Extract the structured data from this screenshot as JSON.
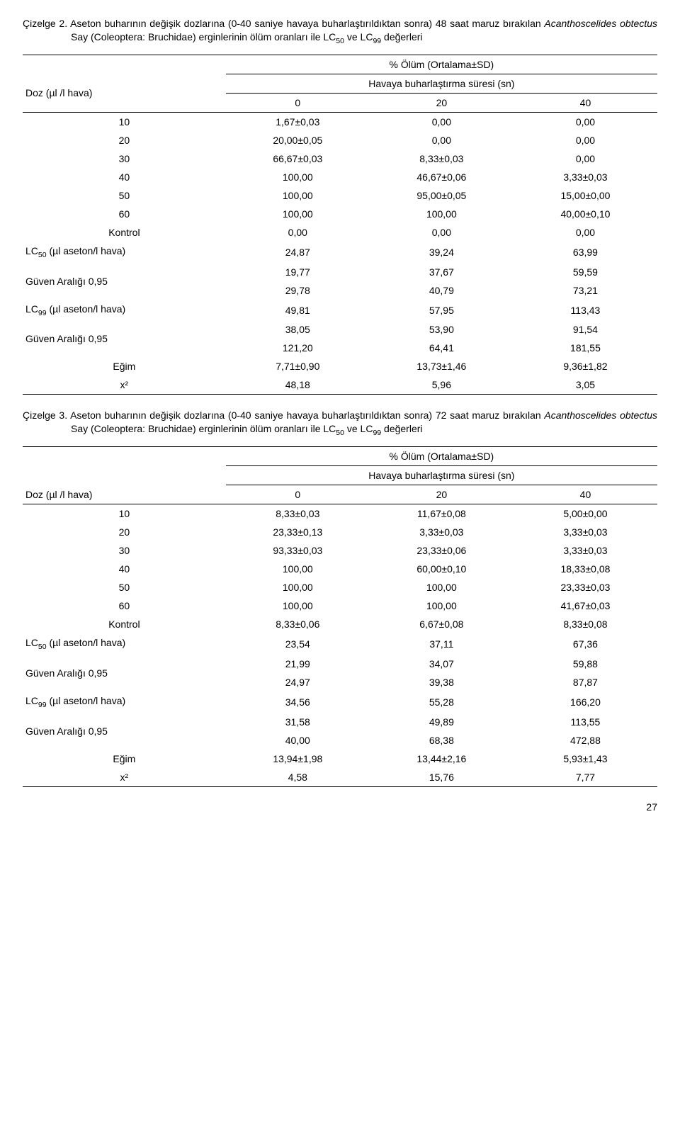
{
  "tables": [
    {
      "caption_label": "Çizelge 2.",
      "caption_text_pre": " Aseton buharının değişik dozlarına (0-40 saniye havaya buharlaştırıldıktan sonra) 48 saat maruz bırakılan ",
      "caption_italic": "Acanthoscelides obtectus",
      "caption_text_post": " Say (Coleoptera: Bruchidae) erginlerinin ölüm oranları ile LC",
      "caption_sub1": "50",
      "caption_text_post2": " ve LC",
      "caption_sub2": "99",
      "caption_text_post3": " değerleri",
      "header_olum": "% Ölüm (Ortalama±SD)",
      "header_hava": "Havaya buharlaştırma süresi (sn)",
      "header_doz": "Doz (µl /l hava)",
      "col_headers": [
        "0",
        "20",
        "40"
      ],
      "rows": [
        {
          "label": "10",
          "v": [
            "1,67±0,03",
            "0,00",
            "0,00"
          ]
        },
        {
          "label": "20",
          "v": [
            "20,00±0,05",
            "0,00",
            "0,00"
          ]
        },
        {
          "label": "30",
          "v": [
            "66,67±0,03",
            "8,33±0,03",
            "0,00"
          ]
        },
        {
          "label": "40",
          "v": [
            "100,00",
            "46,67±0,06",
            "3,33±0,03"
          ]
        },
        {
          "label": "50",
          "v": [
            "100,00",
            "95,00±0,05",
            "15,00±0,00"
          ]
        },
        {
          "label": "60",
          "v": [
            "100,00",
            "100,00",
            "40,00±0,10"
          ]
        },
        {
          "label": "Kontrol",
          "v": [
            "0,00",
            "0,00",
            "0,00"
          ]
        }
      ],
      "lc50_label_pre": "LC",
      "lc50_sub": "50",
      "lc50_label_post": " (µl aseton/l hava)",
      "lc50": [
        "24,87",
        "39,24",
        "63,99"
      ],
      "ga1_label": "Güven Aralığı 0,95",
      "ga1_top": [
        "19,77",
        "37,67",
        "59,59"
      ],
      "ga1_bot": [
        "29,78",
        "40,79",
        "73,21"
      ],
      "lc99_label_pre": "LC",
      "lc99_sub": "99",
      "lc99_label_post": " (µl aseton/l hava)",
      "lc99": [
        "49,81",
        "57,95",
        "113,43"
      ],
      "ga2_label": "Güven Aralığı 0,95",
      "ga2_top": [
        "38,05",
        "53,90",
        "91,54"
      ],
      "ga2_bot": [
        "121,20",
        "64,41",
        "181,55"
      ],
      "egim_label": "Eğim",
      "egim": [
        "7,71±0,90",
        "13,73±1,46",
        "9,36±1,82"
      ],
      "x2_label": "x²",
      "x2": [
        "48,18",
        "5,96",
        "3,05"
      ]
    },
    {
      "caption_label": "Çizelge 3.",
      "caption_text_pre": " Aseton buharının değişik dozlarına (0-40 saniye havaya buharlaştırıldıktan sonra) 72 saat maruz bırakılan ",
      "caption_italic": "Acanthoscelides obtectus",
      "caption_text_post": " Say (Coleoptera: Bruchidae) erginlerinin ölüm oranları ile LC",
      "caption_sub1": "50",
      "caption_text_post2": " ve LC",
      "caption_sub2": "99",
      "caption_text_post3": " değerleri",
      "header_olum": "% Ölüm (Ortalama±SD)",
      "header_hava": "Havaya buharlaştırma süresi (sn)",
      "header_doz": "Doz (µl /l hava)",
      "col_headers": [
        "0",
        "20",
        "40"
      ],
      "rows": [
        {
          "label": "10",
          "v": [
            "8,33±0,03",
            "11,67±0,08",
            "5,00±0,00"
          ]
        },
        {
          "label": "20",
          "v": [
            "23,33±0,13",
            "3,33±0,03",
            "3,33±0,03"
          ]
        },
        {
          "label": "30",
          "v": [
            "93,33±0,03",
            "23,33±0,06",
            "3,33±0,03"
          ]
        },
        {
          "label": "40",
          "v": [
            "100,00",
            "60,00±0,10",
            "18,33±0,08"
          ]
        },
        {
          "label": "50",
          "v": [
            "100,00",
            "100,00",
            "23,33±0,03"
          ]
        },
        {
          "label": "60",
          "v": [
            "100,00",
            "100,00",
            "41,67±0,03"
          ]
        },
        {
          "label": "Kontrol",
          "v": [
            "8,33±0,06",
            "6,67±0,08",
            "8,33±0,08"
          ]
        }
      ],
      "lc50_label_pre": "LC",
      "lc50_sub": "50",
      "lc50_label_post": " (µl aseton/l hava)",
      "lc50": [
        "23,54",
        "37,11",
        "67,36"
      ],
      "ga1_label": "Güven Aralığı 0,95",
      "ga1_top": [
        "21,99",
        "34,07",
        "59,88"
      ],
      "ga1_bot": [
        "24,97",
        "39,38",
        "87,87"
      ],
      "lc99_label_pre": "LC",
      "lc99_sub": "99",
      "lc99_label_post": " (µl aseton/l hava)",
      "lc99": [
        "34,56",
        "55,28",
        "166,20"
      ],
      "ga2_label": "Güven Aralığı 0,95",
      "ga2_top": [
        "31,58",
        "49,89",
        "113,55"
      ],
      "ga2_bot": [
        "40,00",
        "68,38",
        "472,88"
      ],
      "egim_label": "Eğim",
      "egim": [
        "13,94±1,98",
        "13,44±2,16",
        "5,93±1,43"
      ],
      "x2_label": "x²",
      "x2": [
        "4,58",
        "15,76",
        "7,77"
      ]
    }
  ],
  "page_number": "27"
}
